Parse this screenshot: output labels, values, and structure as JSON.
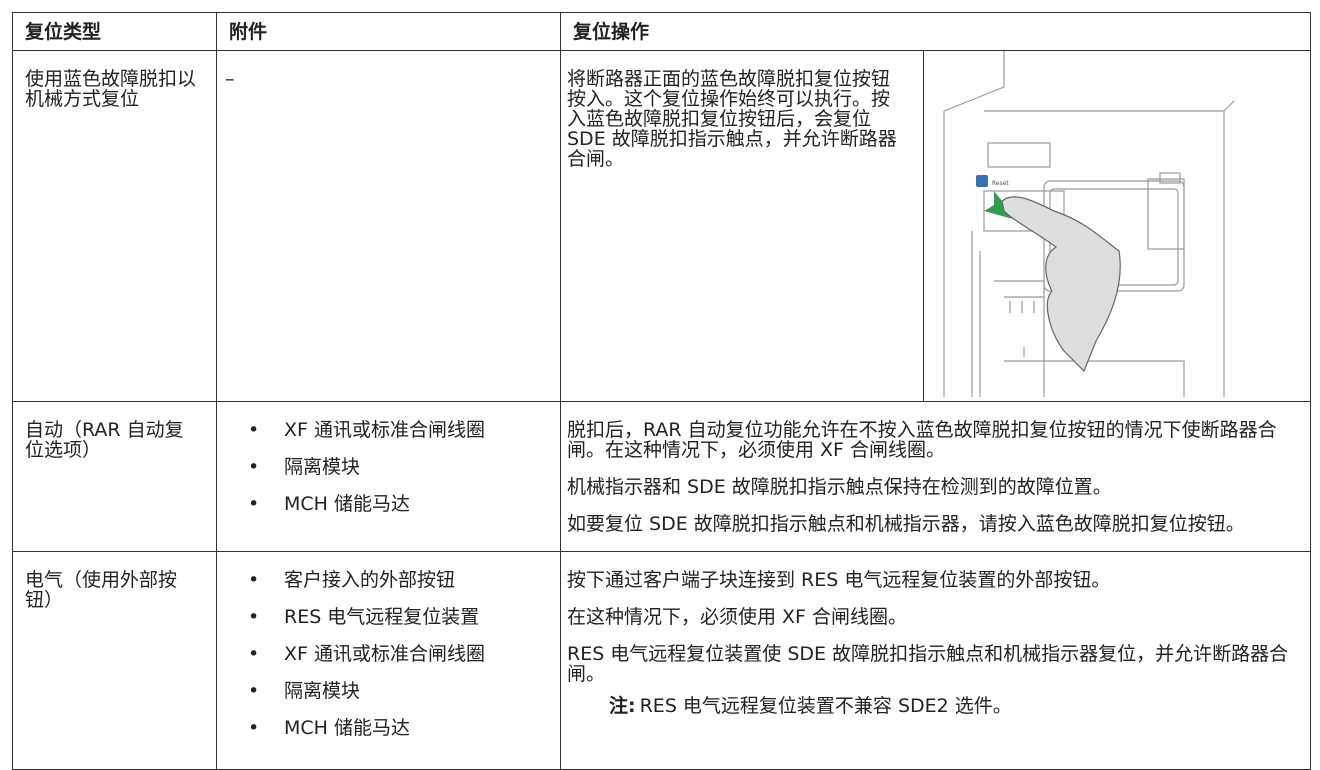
{
  "header": {
    "columns": [
      "复位类型",
      "附件",
      "复位操作"
    ]
  },
  "table": {
    "rows": [
      {
        "type": "使用蓝色故障脱扣以机械方式复位",
        "accessory": "–",
        "operation": [
          "将断路器正面的蓝色故障脱扣复位按钮按入。这个复位操作始终可以执行。按入蓝色故障脱扣复位按钮后，会复位 SDE 故障脱扣指示触点，并允许断路器合闸。"
        ],
        "image_label": "Reset"
      },
      {
        "type": "自动（RAR 自动复位选项）",
        "accessories": [
          "XF 通讯或标准合闸线圈",
          "隔离模块",
          "MCH 储能马达"
        ],
        "operation": [
          "脱扣后，RAR 自动复位功能允许在不按入蓝色故障脱扣复位按钮的情况下使断路器合闸。在这种情况下，必须使用 XF 合闸线圈。",
          "机械指示器和 SDE 故障脱扣指示触点保持在检测到的故障位置。",
          "如要复位 SDE 故障脱扣指示触点和机械指示器，请按入蓝色故障脱扣复位按钮。"
        ]
      },
      {
        "type": "电气（使用外部按钮）",
        "accessories": [
          "客户接入的外部按钮",
          "RES 电气远程复位装置",
          "XF 通讯或标准合闸线圈",
          "隔离模块",
          "MCH 储能马达"
        ],
        "operation": [
          "按下通过客户端子块连接到 RES 电气远程复位装置的外部按钮。",
          "在这种情况下，必须使用 XF 合闸线圈。",
          "RES 电气远程复位装置使 SDE 故障脱扣指示触点和机械指示器复位，并允许断路器合闸。"
        ],
        "note": {
          "label": "注:",
          "text": "RES 电气远程复位装置不兼容 SDE2 选件。"
        }
      }
    ]
  }
}
